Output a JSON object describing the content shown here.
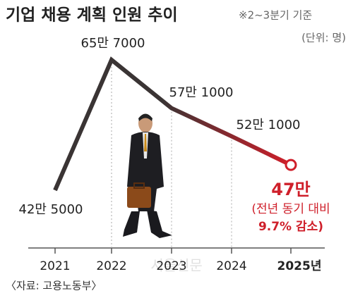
{
  "chart_data": {
    "type": "line",
    "title": "기업 채용 계획 인원 추이",
    "subtitle": "※2~3분기 기준",
    "unit_label": "(단위: 명)",
    "source": "〈자료: 고용노동부〉",
    "watermark": "서울신문",
    "categories": [
      "2021",
      "2022",
      "2023",
      "2024",
      "2025년"
    ],
    "series": [
      {
        "color": "#cf1f2a",
        "start_color": "#3a3434",
        "values": [
          425000,
          657000,
          571000,
          521000,
          470000
        ],
        "value_labels": [
          "42만 5000",
          "65만 7000",
          "57만 1000",
          "52만 1000",
          "47만"
        ]
      }
    ],
    "annotations": [
      "(전년 동기 대비",
      "9.7% 감소)"
    ]
  }
}
